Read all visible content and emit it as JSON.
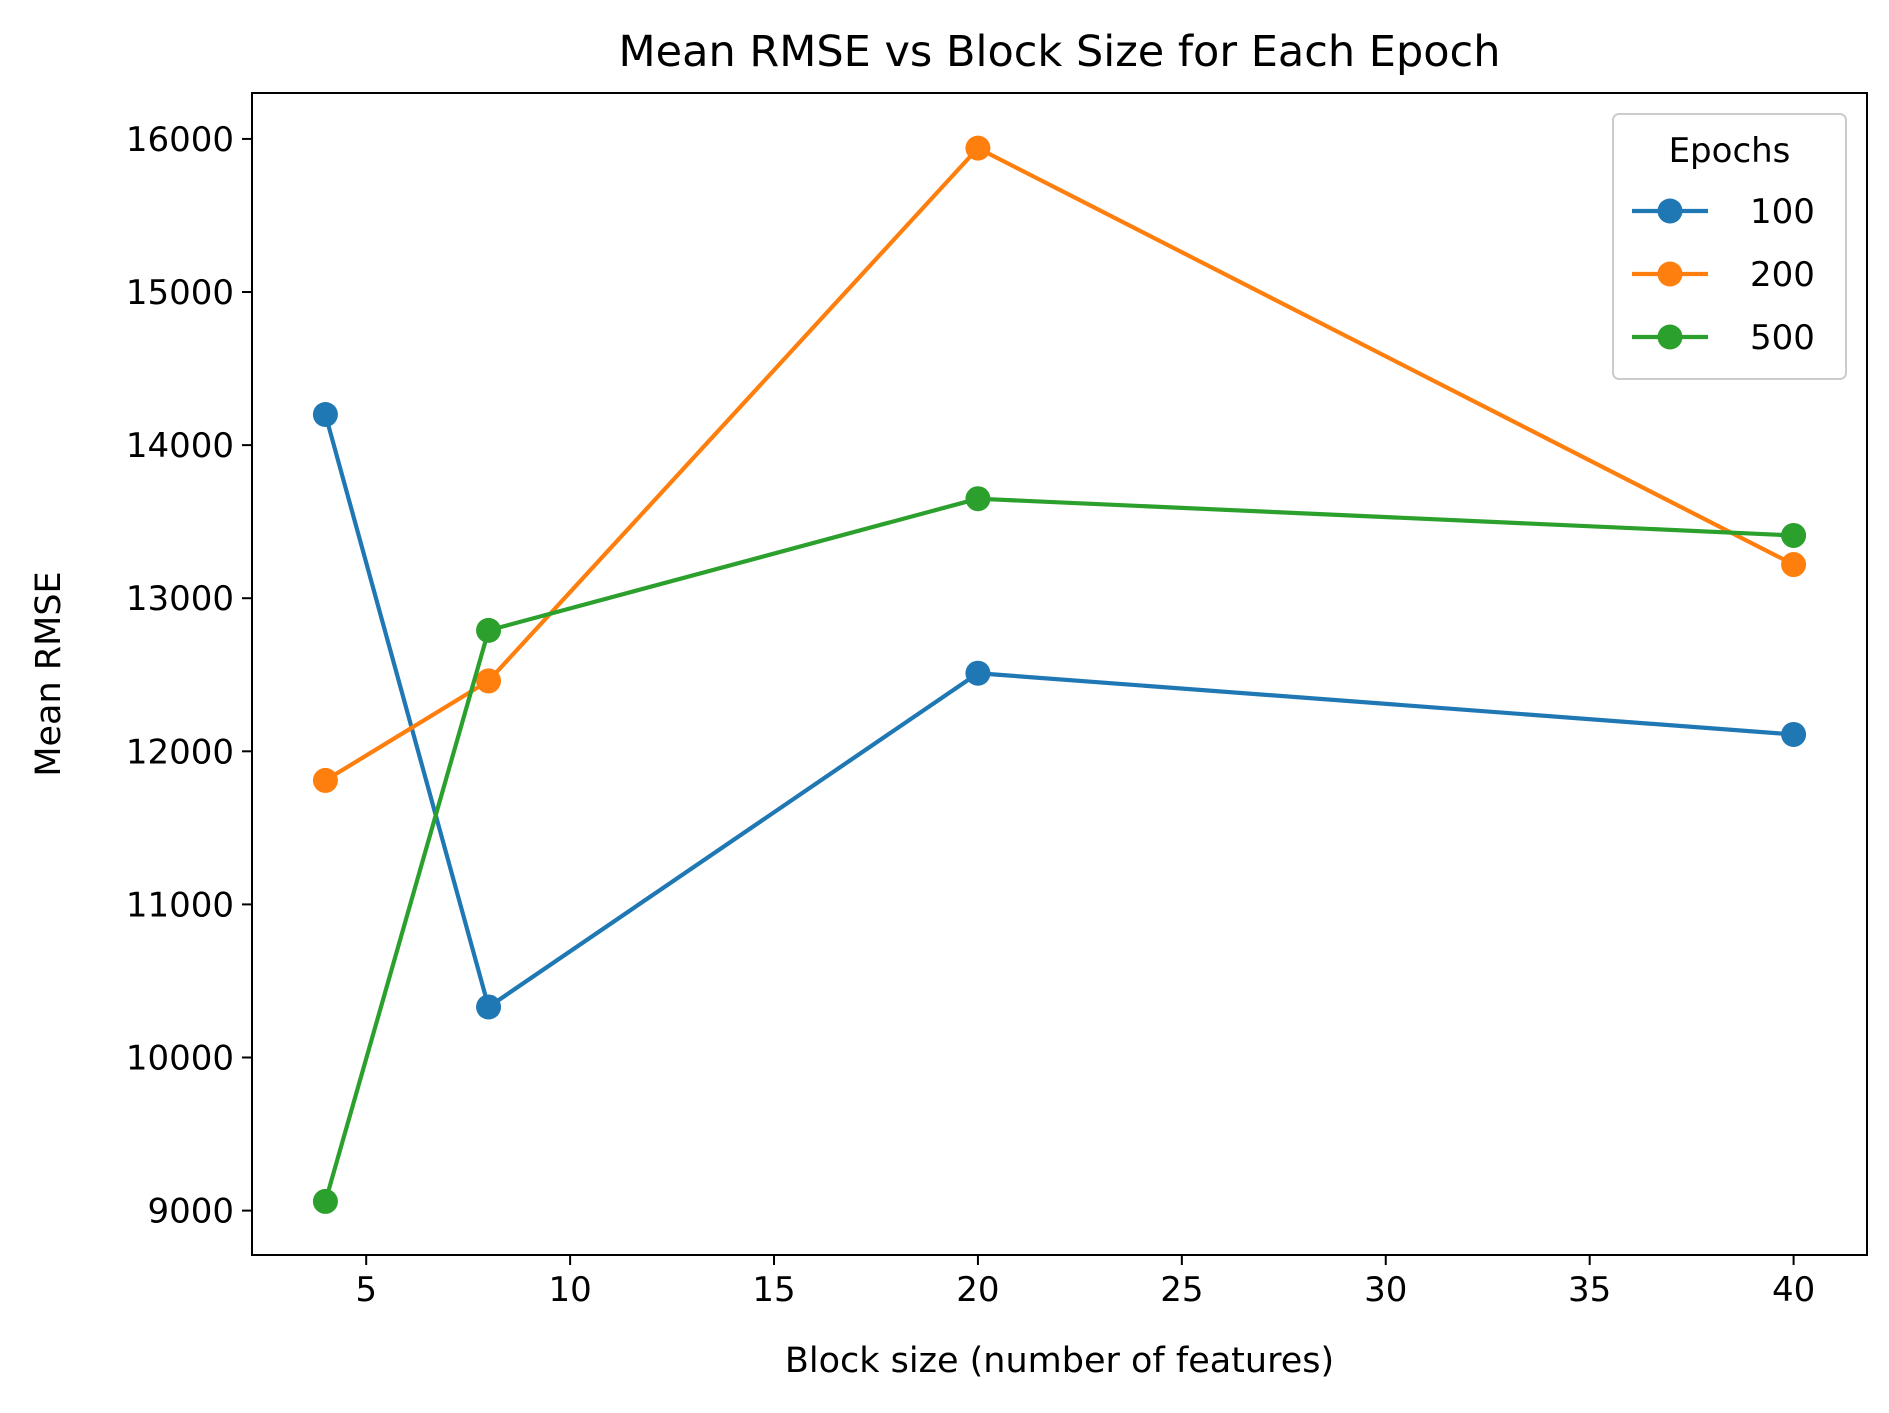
{
  "chart_data": {
    "type": "line",
    "title": "Mean RMSE vs Block Size for Each Epoch",
    "xlabel": "Block size (number of features)",
    "ylabel": "Mean RMSE",
    "x": [
      4,
      8,
      20,
      40
    ],
    "xlim": [
      2.2,
      41.8
    ],
    "ylim": [
      8710,
      16300
    ],
    "xticks": [
      5,
      10,
      15,
      20,
      25,
      30,
      35,
      40
    ],
    "yticks": [
      9000,
      10000,
      11000,
      12000,
      13000,
      14000,
      15000,
      16000
    ],
    "grid": false,
    "legend": {
      "title": "Epochs",
      "position": "top-right"
    },
    "series": [
      {
        "name": "100",
        "color": "#1f77b4",
        "marker": "circle",
        "values": [
          14200,
          10330,
          12510,
          12110
        ]
      },
      {
        "name": "200",
        "color": "#ff7f0e",
        "marker": "circle",
        "values": [
          11810,
          12460,
          15940,
          13220
        ]
      },
      {
        "name": "500",
        "color": "#2ca02c",
        "marker": "circle",
        "values": [
          9060,
          12790,
          13650,
          13410
        ]
      }
    ]
  }
}
